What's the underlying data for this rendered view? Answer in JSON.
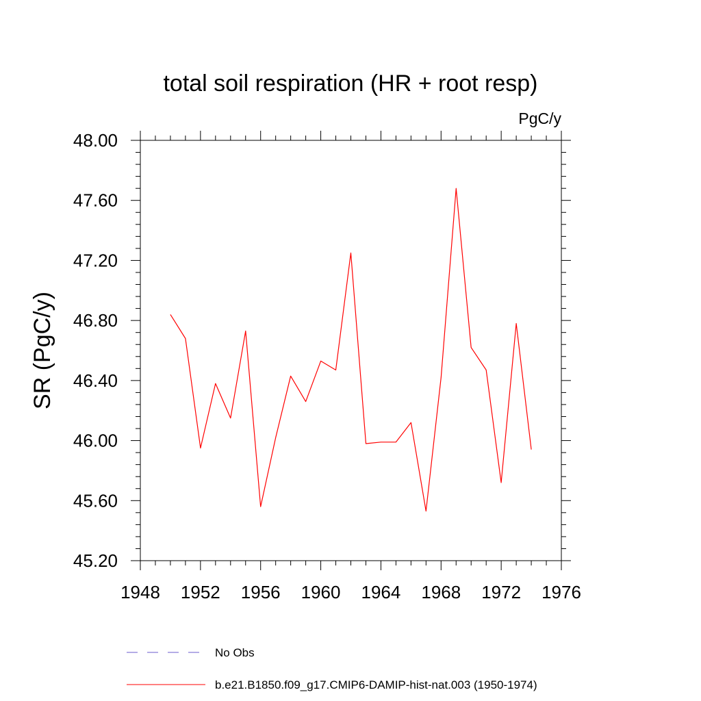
{
  "chart_data": {
    "type": "line",
    "title": "total soil respiration (HR + root resp)",
    "units": "PgC/y",
    "ylabel": "SR  (PgC/y)",
    "xlabel": "",
    "xlim": [
      1948,
      1976
    ],
    "ylim": [
      45.2,
      48.0
    ],
    "x_ticks": [
      "1948",
      "1952",
      "1956",
      "1960",
      "1964",
      "1968",
      "1972",
      "1976"
    ],
    "y_ticks": [
      "45.20",
      "45.60",
      "46.00",
      "46.40",
      "46.80",
      "47.20",
      "47.60",
      "48.00"
    ],
    "grid": false,
    "legend_position": "bottom",
    "series": [
      {
        "name": "No Obs",
        "color": "#6a5acd",
        "dash": "dashed",
        "x": [],
        "values": []
      },
      {
        "name": "b.e21.B1850.f09_g17.CMIP6-DAMIP-hist-nat.003 (1950-1974)",
        "color": "#ff0000",
        "dash": "solid",
        "x": [
          1950,
          1951,
          1952,
          1953,
          1954,
          1955,
          1956,
          1957,
          1958,
          1959,
          1960,
          1961,
          1962,
          1963,
          1964,
          1965,
          1966,
          1967,
          1968,
          1969,
          1970,
          1971,
          1972,
          1973,
          1974
        ],
        "values": [
          46.84,
          46.68,
          45.95,
          46.38,
          46.15,
          46.73,
          45.56,
          46.02,
          46.43,
          46.26,
          46.53,
          46.47,
          47.25,
          45.98,
          45.99,
          45.99,
          46.12,
          45.53,
          46.42,
          47.68,
          46.62,
          46.47,
          45.72,
          46.78,
          45.94
        ]
      }
    ]
  }
}
